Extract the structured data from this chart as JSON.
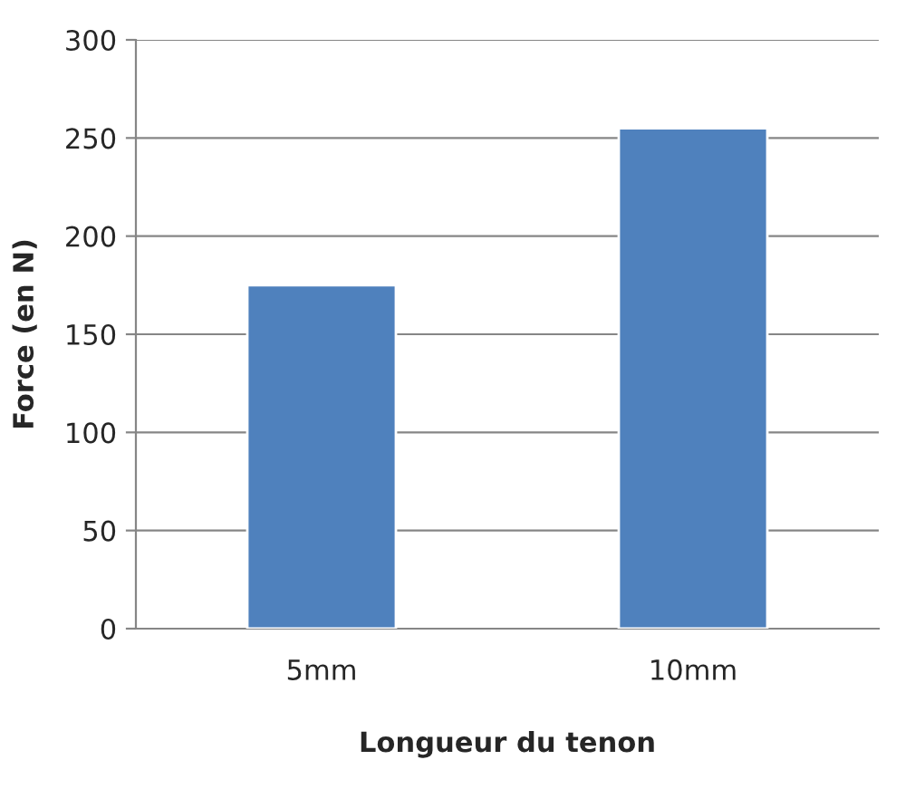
{
  "chart_data": {
    "type": "bar",
    "xlabel": "Longueur du tenon",
    "ylabel": "Force (en N)",
    "categories": [
      "5mm",
      "10mm"
    ],
    "values": [
      175,
      255
    ],
    "color": "#4f81bd",
    "ylim": [
      0,
      300
    ],
    "yticks": [
      0,
      50,
      100,
      150,
      200,
      250,
      300
    ],
    "grid": "y",
    "legend": false
  }
}
